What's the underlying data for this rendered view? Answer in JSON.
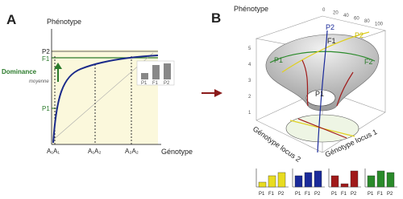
{
  "panel_a": {
    "letter": "A",
    "y_label": "Phénotype",
    "x_label": "Génotype",
    "levels": [
      "P2",
      "F1",
      "P1"
    ],
    "dominance": "Dominance",
    "mean": "moyenne",
    "genotypes": [
      "A₁A₁",
      "A₁A₂",
      "A₂A₂"
    ],
    "inset_labels": [
      "P1",
      "F1",
      "P2"
    ]
  },
  "panel_b": {
    "letter": "B",
    "z_label": "Phénotype",
    "curve_labels": [
      "P2",
      "F1",
      "P1",
      "F2"
    ],
    "base_label": "P1",
    "x_axis": "Génotype locus 2",
    "y_axis": "Génotype locus 1",
    "z_ticks": [
      "5",
      "4",
      "3",
      "2",
      "1"
    ],
    "top_ticks": [
      "0",
      "20",
      "40",
      "60",
      "80",
      "100"
    ],
    "bar_groups": [
      [
        "P1",
        "F1",
        "P2"
      ],
      [
        "P1",
        "F1",
        "P2"
      ],
      [
        "P1",
        "F1",
        "P2"
      ],
      [
        "P1",
        "F1",
        "P2"
      ]
    ]
  }
}
